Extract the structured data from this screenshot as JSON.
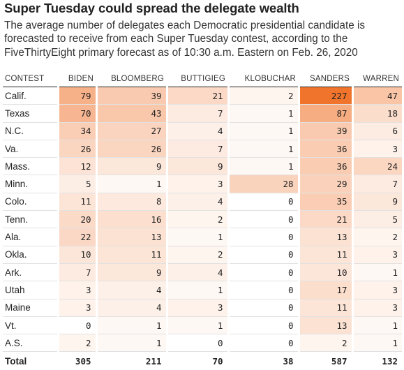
{
  "title": "Super Tuesday could spread the delegate wealth",
  "subtitle": "The average number of delegates each Democratic presidential candidate is forecasted to receive from each Super Tuesday contest, according to the FiveThirtyEight primary forecast as of 10:30 a.m. Eastern on Feb. 26, 2020",
  "chart_data": {
    "type": "table",
    "columns": [
      "CONTEST",
      "BIDEN",
      "BLOOMBERG",
      "BUTTIGIEG",
      "KLOBUCHAR",
      "SANDERS",
      "WARREN"
    ],
    "rows": [
      {
        "contest": "Calif.",
        "values": [
          79,
          39,
          21,
          2,
          227,
          47
        ]
      },
      {
        "contest": "Texas",
        "values": [
          70,
          43,
          7,
          1,
          87,
          18
        ]
      },
      {
        "contest": "N.C.",
        "values": [
          34,
          27,
          4,
          1,
          39,
          6
        ]
      },
      {
        "contest": "Va.",
        "values": [
          26,
          26,
          7,
          1,
          36,
          3
        ]
      },
      {
        "contest": "Mass.",
        "values": [
          12,
          9,
          9,
          1,
          36,
          24
        ]
      },
      {
        "contest": "Minn.",
        "values": [
          5,
          1,
          3,
          28,
          29,
          7
        ]
      },
      {
        "contest": "Colo.",
        "values": [
          11,
          8,
          4,
          0,
          35,
          9
        ]
      },
      {
        "contest": "Tenn.",
        "values": [
          20,
          16,
          2,
          0,
          21,
          5
        ]
      },
      {
        "contest": "Ala.",
        "values": [
          22,
          13,
          1,
          0,
          13,
          2
        ]
      },
      {
        "contest": "Okla.",
        "values": [
          10,
          11,
          2,
          0,
          11,
          3
        ]
      },
      {
        "contest": "Ark.",
        "values": [
          7,
          9,
          4,
          0,
          10,
          1
        ]
      },
      {
        "contest": "Utah",
        "values": [
          3,
          4,
          1,
          0,
          17,
          3
        ]
      },
      {
        "contest": "Maine",
        "values": [
          3,
          4,
          3,
          0,
          11,
          3
        ]
      },
      {
        "contest": "Vt.",
        "values": [
          0,
          1,
          1,
          0,
          13,
          1
        ]
      },
      {
        "contest": "A.S.",
        "values": [
          2,
          1,
          0,
          0,
          2,
          1
        ]
      }
    ],
    "total": {
      "label": "Total",
      "values": [
        305,
        211,
        70,
        38,
        587,
        132
      ]
    },
    "color_scale": {
      "low": "#ffffff",
      "high": "#f0742c",
      "max_value": 227
    }
  }
}
